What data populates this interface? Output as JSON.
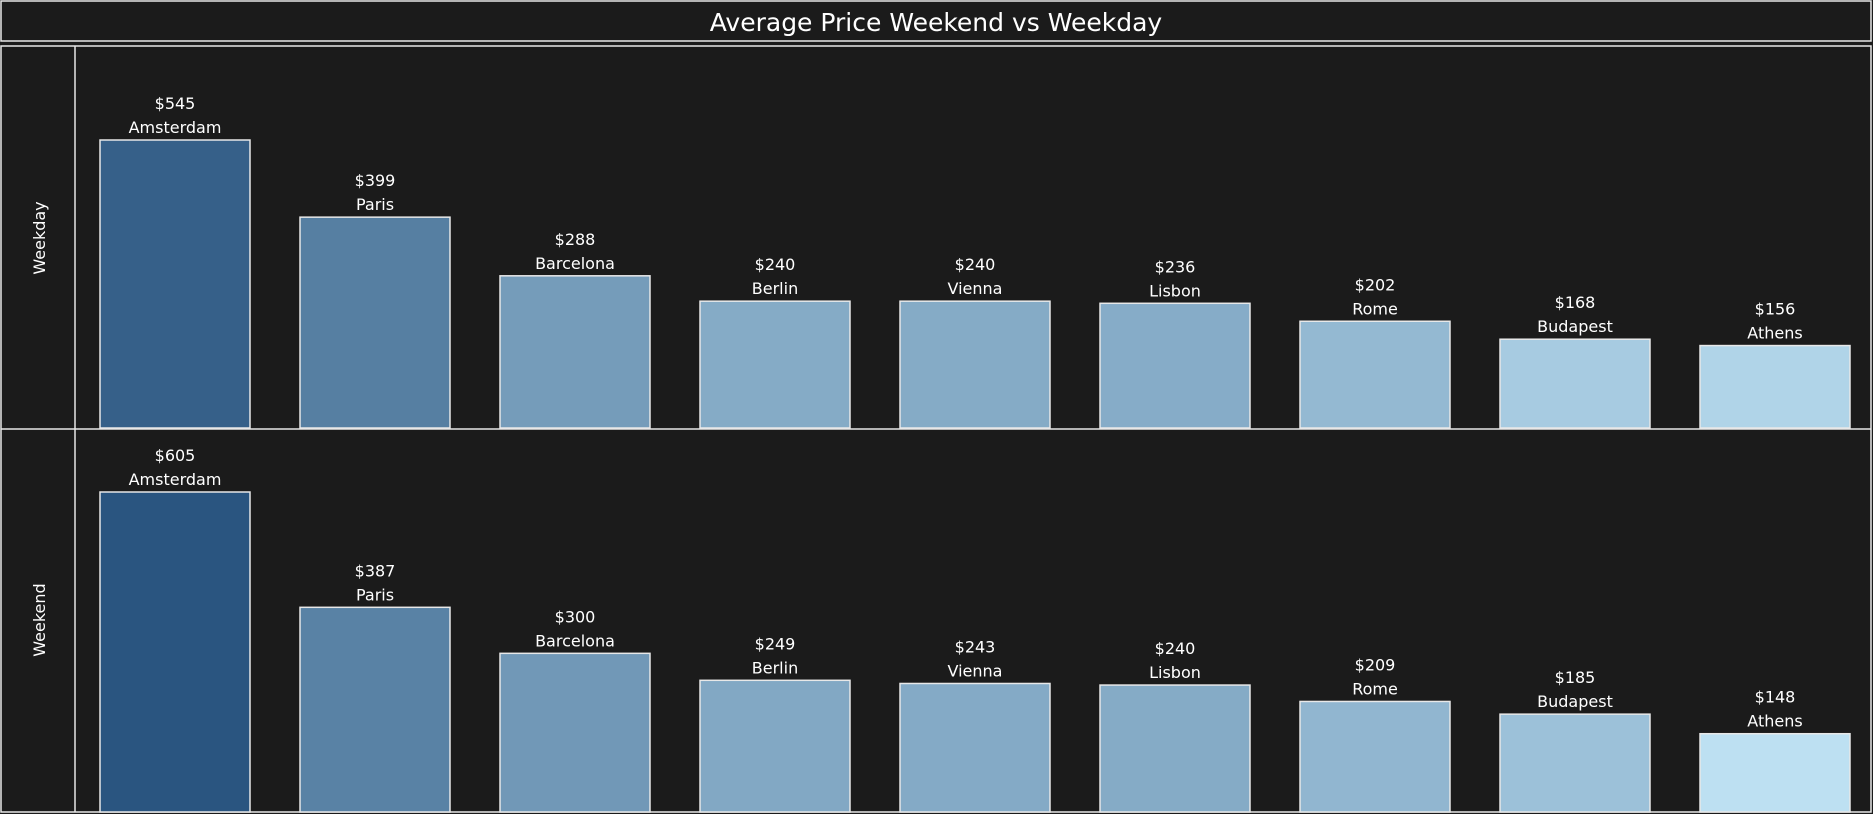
{
  "chart_data": {
    "type": "bar",
    "title": "Average Price Weekend vs Weekday",
    "value_prefix": "$",
    "color_scale": {
      "low": "#bde0f2",
      "high": "#2a5580",
      "domain": [
        148,
        605
      ]
    },
    "background": "#1b1b1b",
    "border_color": "#e8e8e8",
    "panels": [
      {
        "row_label": "Weekday",
        "bars": [
          {
            "category": "Amsterdam",
            "value": 545
          },
          {
            "category": "Paris",
            "value": 399
          },
          {
            "category": "Barcelona",
            "value": 288
          },
          {
            "category": "Berlin",
            "value": 240
          },
          {
            "category": "Vienna",
            "value": 240
          },
          {
            "category": "Lisbon",
            "value": 236
          },
          {
            "category": "Rome",
            "value": 202
          },
          {
            "category": "Budapest",
            "value": 168
          },
          {
            "category": "Athens",
            "value": 156
          }
        ]
      },
      {
        "row_label": "Weekend",
        "bars": [
          {
            "category": "Amsterdam",
            "value": 605
          },
          {
            "category": "Paris",
            "value": 387
          },
          {
            "category": "Barcelona",
            "value": 300
          },
          {
            "category": "Berlin",
            "value": 249
          },
          {
            "category": "Vienna",
            "value": 243
          },
          {
            "category": "Lisbon",
            "value": 240
          },
          {
            "category": "Rome",
            "value": 209
          },
          {
            "category": "Budapest",
            "value": 185
          },
          {
            "category": "Athens",
            "value": 148
          }
        ]
      }
    ]
  }
}
